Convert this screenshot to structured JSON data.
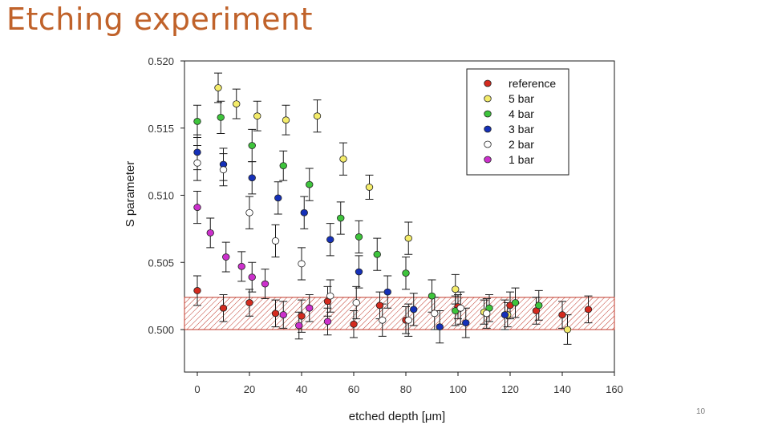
{
  "slide": {
    "title": "Etching experiment",
    "page_number": "10"
  },
  "chart_data": {
    "type": "scatter",
    "title": "",
    "xlabel": "etched depth [μm]",
    "ylabel": "S parameter",
    "xlim": [
      0,
      160
    ],
    "ylim": [
      0.4965,
      0.5205
    ],
    "x_ticks": [
      0,
      20,
      40,
      60,
      80,
      100,
      120,
      140,
      160
    ],
    "x_tick_labels": [
      "0",
      "20",
      "40",
      "60",
      "80",
      "100",
      "120",
      "140",
      "160"
    ],
    "y_ticks": [
      0.5,
      0.505,
      0.51,
      0.515,
      0.52
    ],
    "y_tick_labels": [
      "0.500",
      "0.505",
      "0.510",
      "0.515",
      "0.520"
    ],
    "grid": false,
    "legend_position": "top-right",
    "reference_band": {
      "y_min": 0.5,
      "y_max": 0.5024,
      "color": "#c0392b",
      "pattern": "hatched"
    },
    "series": [
      {
        "name": "reference",
        "color": "#d42a1e",
        "x": [
          0,
          10,
          20,
          30,
          40,
          50,
          60,
          70,
          80,
          100,
          120,
          130,
          140,
          150
        ],
        "y": [
          0.5029,
          0.5016,
          0.502,
          0.5012,
          0.501,
          0.5021,
          0.5004,
          0.5018,
          0.5007,
          0.5017,
          0.5018,
          0.5014,
          0.5011,
          0.5015
        ],
        "err": [
          0.0011,
          0.001,
          0.001,
          0.001,
          0.0012,
          0.0011,
          0.001,
          0.001,
          0.001,
          0.0009,
          0.001,
          0.001,
          0.001,
          0.001
        ]
      },
      {
        "name": "5 bar",
        "color": "#f4ec6a",
        "x": [
          8,
          15,
          23,
          34,
          46,
          56,
          66,
          81,
          99,
          110,
          119,
          142
        ],
        "y": [
          0.518,
          0.5168,
          0.5159,
          0.5156,
          0.5159,
          0.5127,
          0.5106,
          0.5068,
          0.503,
          0.5013,
          0.5011,
          0.5
        ],
        "err": [
          0.0011,
          0.0011,
          0.0011,
          0.0011,
          0.0012,
          0.0012,
          0.0009,
          0.0012,
          0.0011,
          0.0009,
          0.0009,
          0.0011
        ]
      },
      {
        "name": "4 bar",
        "color": "#3ec43c",
        "x": [
          0,
          9,
          21,
          33,
          43,
          55,
          62,
          69,
          80,
          90,
          99,
          112,
          122,
          131
        ],
        "y": [
          0.5155,
          0.5158,
          0.5137,
          0.5122,
          0.5108,
          0.5083,
          0.5069,
          0.5056,
          0.5042,
          0.5025,
          0.5014,
          0.5016,
          0.502,
          0.5018
        ],
        "err": [
          0.0012,
          0.0012,
          0.0012,
          0.0011,
          0.0012,
          0.0012,
          0.0012,
          0.0012,
          0.0012,
          0.0012,
          0.0011,
          0.001,
          0.0011,
          0.0011
        ]
      },
      {
        "name": "3 bar",
        "color": "#1530b8",
        "x": [
          0,
          10,
          21,
          31,
          41,
          51,
          62,
          73,
          83,
          93,
          103,
          118
        ],
        "y": [
          0.5132,
          0.5123,
          0.5113,
          0.5098,
          0.5087,
          0.5067,
          0.5043,
          0.5028,
          0.5015,
          0.5002,
          0.5005,
          0.5011
        ],
        "err": [
          0.0013,
          0.0012,
          0.0012,
          0.0012,
          0.0012,
          0.0012,
          0.0012,
          0.0012,
          0.0012,
          0.0012,
          0.0011,
          0.0011
        ]
      },
      {
        "name": "2 bar",
        "color": "#ffffff",
        "x": [
          0,
          10,
          20,
          30,
          40,
          51,
          61,
          71,
          81,
          91,
          101,
          111
        ],
        "y": [
          0.5124,
          0.5119,
          0.5087,
          0.5066,
          0.5049,
          0.5025,
          0.502,
          0.5007,
          0.5007,
          0.5012,
          0.5016,
          0.5012
        ],
        "err": [
          0.0013,
          0.0012,
          0.0012,
          0.0012,
          0.0012,
          0.0012,
          0.0012,
          0.0012,
          0.0012,
          0.0012,
          0.0012,
          0.0011
        ]
      },
      {
        "name": "1 bar",
        "color": "#cc30cc",
        "x": [
          0,
          5,
          11,
          17,
          21,
          26,
          33,
          39,
          43,
          50
        ],
        "y": [
          0.5091,
          0.5072,
          0.5054,
          0.5047,
          0.5039,
          0.5034,
          0.5011,
          0.5003,
          0.5016,
          0.5006
        ],
        "err": [
          0.0012,
          0.0011,
          0.0011,
          0.0011,
          0.0011,
          0.0011,
          0.001,
          0.001,
          0.001,
          0.001
        ]
      }
    ]
  }
}
